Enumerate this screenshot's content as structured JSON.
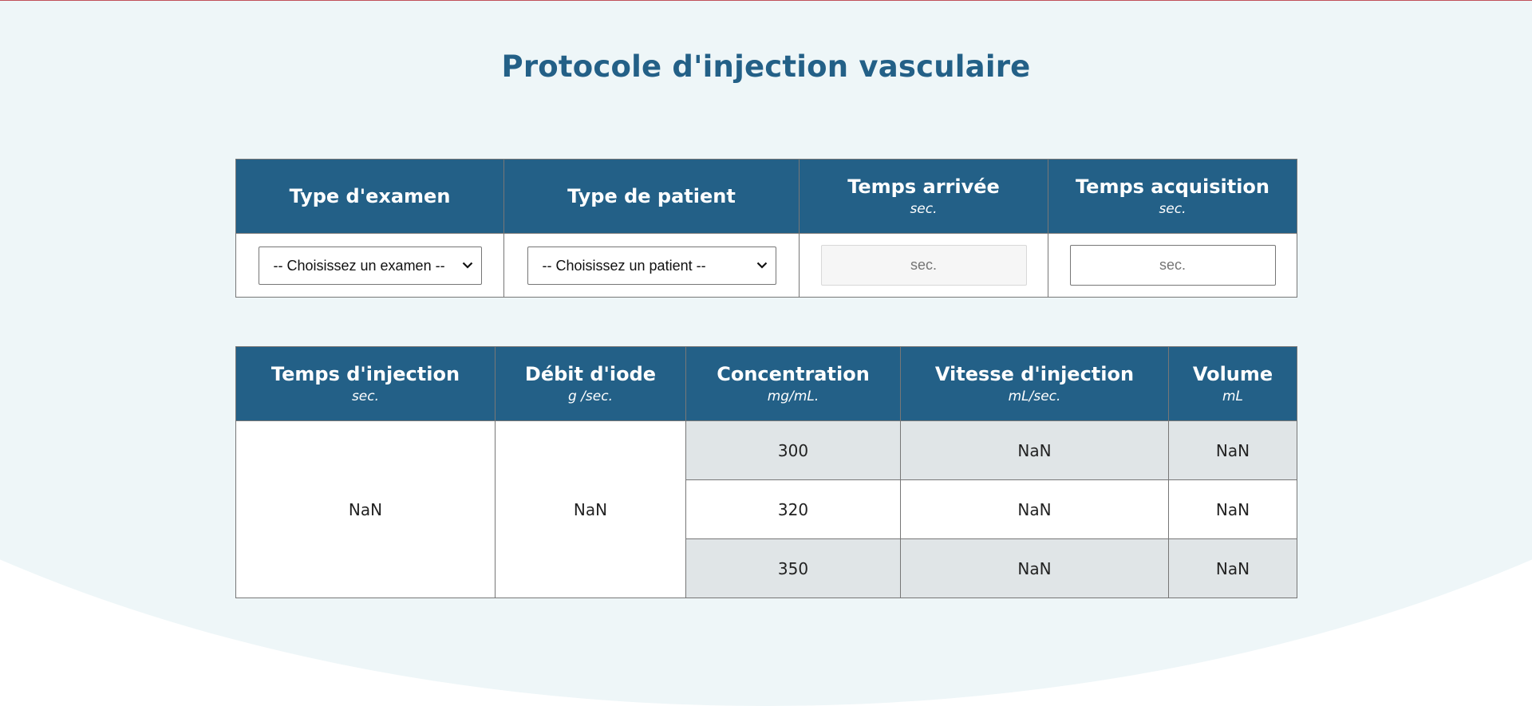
{
  "title": "Protocole d'injection vasculaire",
  "inputs_table": {
    "headers": [
      {
        "label": "Type d'examen",
        "unit": ""
      },
      {
        "label": "Type de patient",
        "unit": ""
      },
      {
        "label": "Temps arrivée",
        "unit": "sec."
      },
      {
        "label": "Temps acquisition",
        "unit": "sec."
      }
    ],
    "exam_select": {
      "value": "-- Choisissez un examen --"
    },
    "patient_select": {
      "value": "-- Choisissez un patient --"
    },
    "arrival_time": {
      "placeholder": "sec.",
      "disabled": true
    },
    "acquisition_time": {
      "placeholder": "sec."
    }
  },
  "results_table": {
    "headers": [
      {
        "label": "Temps d'injection",
        "unit": "sec."
      },
      {
        "label": "Débit d'iode",
        "unit": "g /sec."
      },
      {
        "label": "Concentration",
        "unit": "mg/mL."
      },
      {
        "label": "Vitesse d'injection",
        "unit": "mL/sec."
      },
      {
        "label": "Volume",
        "unit": "mL"
      }
    ],
    "injection_time": "NaN",
    "iodine_flow": "NaN",
    "rows": [
      {
        "concentration": "300",
        "speed": "NaN",
        "volume": "NaN"
      },
      {
        "concentration": "320",
        "speed": "NaN",
        "volume": "NaN"
      },
      {
        "concentration": "350",
        "speed": "NaN",
        "volume": "NaN"
      }
    ]
  },
  "colors": {
    "header_bg": "#236087",
    "title": "#236087",
    "page_bg": "#eef6f8",
    "shaded_row": "#e0e5e7",
    "top_line": "#c0505a"
  },
  "icons": {
    "select_arrow": "chevron-down-icon"
  }
}
